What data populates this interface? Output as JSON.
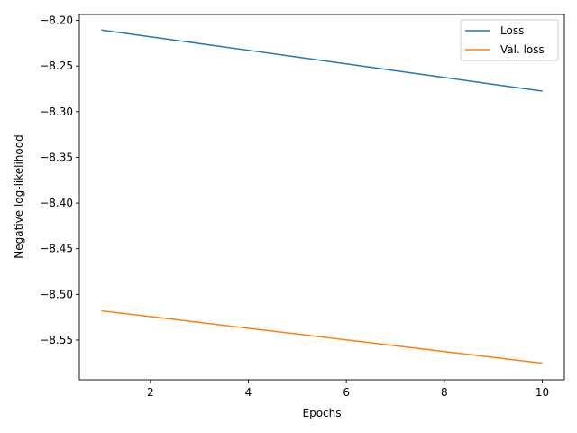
{
  "chart_data": {
    "type": "line",
    "xlabel": "Epochs",
    "ylabel": "Negative log-likelihood",
    "xlim": [
      0.55,
      10.45
    ],
    "ylim": [
      -8.5935,
      -8.1935
    ],
    "xticks": [
      2,
      4,
      6,
      8,
      10
    ],
    "yticks": [
      -8.2,
      -8.25,
      -8.3,
      -8.35,
      -8.4,
      -8.45,
      -8.5,
      -8.55
    ],
    "ytick_labels": [
      "−8.20",
      "−8.25",
      "−8.30",
      "−8.35",
      "−8.40",
      "−8.45",
      "−8.50",
      "−8.55"
    ],
    "grid": false,
    "legend_position": "top-right",
    "series": [
      {
        "name": "Loss",
        "color": "#1f77b4",
        "x": [
          1,
          2,
          3,
          4,
          5,
          6,
          7,
          8,
          9,
          10
        ],
        "y": [
          -8.2105,
          -8.2179,
          -8.2253,
          -8.2327,
          -8.2402,
          -8.2476,
          -8.2551,
          -8.2625,
          -8.27,
          -8.2775
        ]
      },
      {
        "name": "Val. loss",
        "color": "#ff7f0e",
        "x": [
          1,
          2,
          3,
          4,
          5,
          6,
          7,
          8,
          9,
          10
        ],
        "y": [
          -8.518,
          -8.5243,
          -8.5307,
          -8.5371,
          -8.5434,
          -8.5498,
          -8.5562,
          -8.5626,
          -8.5689,
          -8.5753
        ]
      }
    ]
  }
}
